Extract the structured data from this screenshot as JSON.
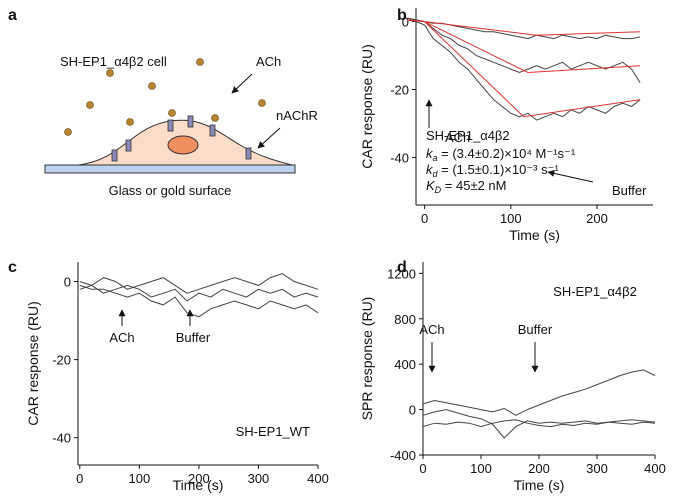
{
  "diagram": {
    "label": "a",
    "cell": "SH-EP1_α4β2 cell",
    "ligand": "ACh",
    "receptor": "nAChR",
    "surface": "Glass or gold surface"
  },
  "chart_data": [
    {
      "type": "line",
      "panel": "b",
      "x_label": "Time (s)",
      "y_label": "CAR response (RU)",
      "xlim": [
        -10,
        265
      ],
      "ylim": [
        -54,
        4
      ],
      "xticks": [
        0,
        100,
        200
      ],
      "yticks": [
        0,
        -20,
        -40
      ],
      "series": [
        {
          "color": "#444444",
          "x": [
            -20,
            -10,
            0,
            10,
            20,
            30,
            40,
            50,
            60,
            70,
            80,
            90,
            100,
            110,
            120,
            130,
            140,
            150,
            160,
            170,
            180,
            190,
            200,
            210,
            220,
            230,
            240,
            250
          ],
          "values": [
            1,
            0.5,
            0,
            -0.5,
            -0.5,
            -1,
            -1.5,
            -2,
            -2.5,
            -3,
            -3,
            -3.5,
            -4,
            -4.5,
            -5,
            -4,
            -4.5,
            -5,
            -4,
            -4.5,
            -5,
            -4.5,
            -5,
            -4,
            -4.5,
            -5,
            -5,
            -4.5
          ]
        },
        {
          "color": "#444444",
          "x": [
            -20,
            -10,
            0,
            10,
            20,
            30,
            40,
            50,
            60,
            70,
            80,
            90,
            100,
            110,
            120,
            130,
            140,
            150,
            160,
            170,
            180,
            190,
            200,
            210,
            220,
            230,
            240,
            250
          ],
          "values": [
            1,
            0.5,
            0,
            -2,
            -4,
            -5,
            -7,
            -8,
            -10,
            -11,
            -12,
            -13,
            -14,
            -15,
            -14,
            -13,
            -14,
            -13,
            -12,
            -14,
            -13,
            -12,
            -13,
            -14,
            -13,
            -12,
            -14,
            -18
          ]
        },
        {
          "color": "#444444",
          "x": [
            -20,
            -10,
            0,
            10,
            20,
            30,
            40,
            50,
            60,
            70,
            80,
            90,
            100,
            110,
            120,
            130,
            140,
            150,
            160,
            170,
            180,
            190,
            200,
            210,
            220,
            230,
            240,
            250
          ],
          "values": [
            0.5,
            0,
            -1,
            -5,
            -7,
            -9,
            -12,
            -14,
            -17,
            -20,
            -23,
            -25,
            -27,
            -28,
            -27,
            -29,
            -28,
            -27,
            -28,
            -26,
            -27,
            -25,
            -26,
            -27,
            -25,
            -24,
            -25,
            -23
          ]
        },
        {
          "color": "#e03030",
          "x": [
            -20,
            0,
            130,
            250
          ],
          "values": [
            0.5,
            0,
            -4,
            -3
          ]
        },
        {
          "color": "#e03030",
          "x": [
            -20,
            0,
            120,
            250
          ],
          "values": [
            0.5,
            0,
            -15,
            -13
          ]
        },
        {
          "color": "#e03030",
          "x": [
            -20,
            0,
            115,
            250
          ],
          "values": [
            0.5,
            0,
            -28,
            -23
          ]
        }
      ],
      "annotations": [
        "ACh",
        "Buffer",
        "SH-EP1_α4β2"
      ],
      "parameters": [
        {
          "symbol": "k",
          "subscript": "a",
          "text": " = (3.4±0.2)×10⁴ M⁻¹s⁻¹"
        },
        {
          "symbol": "k",
          "subscript": "d",
          "text": " = (1.5±0.1)×10⁻³ s⁻¹"
        },
        {
          "symbol": "K",
          "subscript": "D",
          "text": " = 45±2 nM"
        }
      ]
    },
    {
      "type": "line",
      "panel": "c",
      "x_label": "Time (s)",
      "y_label": "CAR response (RU)",
      "xlim": [
        -3,
        400
      ],
      "ylim": [
        -47,
        5
      ],
      "xticks": [
        0,
        100,
        200,
        300,
        400
      ],
      "yticks": [
        0,
        -20,
        -40
      ],
      "series": [
        {
          "color": "#444444",
          "x": [
            0,
            20,
            40,
            60,
            80,
            100,
            120,
            140,
            160,
            180,
            200,
            220,
            240,
            260,
            280,
            300,
            320,
            340,
            360,
            380,
            400
          ],
          "values": [
            0,
            -1,
            1,
            0,
            -2,
            -1,
            0,
            1,
            -1,
            -3,
            -2,
            -1,
            0,
            1,
            0,
            -1,
            1,
            2,
            0,
            -1,
            -2
          ]
        },
        {
          "color": "#444444",
          "x": [
            0,
            20,
            40,
            60,
            80,
            100,
            120,
            140,
            160,
            180,
            200,
            220,
            240,
            260,
            280,
            300,
            320,
            340,
            360,
            380,
            400
          ],
          "values": [
            -2,
            -1,
            -3,
            -2,
            -1,
            -2,
            -4,
            -3,
            -2,
            -5,
            -3,
            -4,
            -2,
            -3,
            -4,
            -2,
            -3,
            -2,
            -4,
            -3,
            -4
          ]
        },
        {
          "color": "#444444",
          "x": [
            0,
            20,
            40,
            60,
            80,
            100,
            120,
            140,
            160,
            180,
            200,
            220,
            240,
            260,
            280,
            300,
            320,
            340,
            360,
            380,
            400
          ],
          "values": [
            -1,
            -2,
            -2,
            -3,
            -4,
            -3,
            -5,
            -6,
            -4,
            -8,
            -9,
            -7,
            -6,
            -5,
            -6,
            -7,
            -5,
            -6,
            -7,
            -6,
            -8
          ]
        }
      ],
      "annotations": [
        "ACh",
        "Buffer",
        "SH-EP1_WT"
      ]
    },
    {
      "type": "line",
      "panel": "d",
      "x_label": "Time (s)",
      "y_label": "SPR response (RU)",
      "xlim": [
        0,
        400
      ],
      "ylim": [
        -400,
        1300
      ],
      "xticks": [
        0,
        100,
        200,
        300,
        400
      ],
      "yticks": [
        -400,
        0,
        400,
        800,
        1200
      ],
      "series": [
        {
          "color": "#444444",
          "x": [
            0,
            20,
            40,
            60,
            80,
            100,
            120,
            140,
            160,
            180,
            200,
            220,
            240,
            260,
            280,
            300,
            320,
            340,
            360,
            380,
            400
          ],
          "values": [
            50,
            80,
            60,
            40,
            20,
            0,
            -20,
            10,
            -50,
            0,
            40,
            80,
            120,
            150,
            180,
            220,
            260,
            300,
            330,
            350,
            300
          ]
        },
        {
          "color": "#444444",
          "x": [
            0,
            20,
            40,
            60,
            80,
            100,
            120,
            140,
            160,
            180,
            200,
            220,
            240,
            260,
            280,
            300,
            320,
            340,
            360,
            380,
            400
          ],
          "values": [
            -50,
            -20,
            0,
            -30,
            -60,
            -80,
            -130,
            -250,
            -150,
            -100,
            -120,
            -110,
            -120,
            -110,
            -100,
            -120,
            -110,
            -100,
            -90,
            -100,
            -110
          ]
        },
        {
          "color": "#444444",
          "x": [
            0,
            20,
            40,
            60,
            80,
            100,
            120,
            140,
            160,
            180,
            200,
            220,
            240,
            260,
            280,
            300,
            320,
            340,
            360,
            380,
            400
          ],
          "values": [
            -150,
            -120,
            -130,
            -110,
            -120,
            -150,
            -120,
            -100,
            -90,
            -120,
            -140,
            -150,
            -130,
            -140,
            -120,
            -130,
            -110,
            -120,
            -130,
            -110,
            -120
          ]
        }
      ],
      "annotations": [
        "ACh",
        "Buffer",
        "SH-EP1_α4β2"
      ]
    }
  ]
}
